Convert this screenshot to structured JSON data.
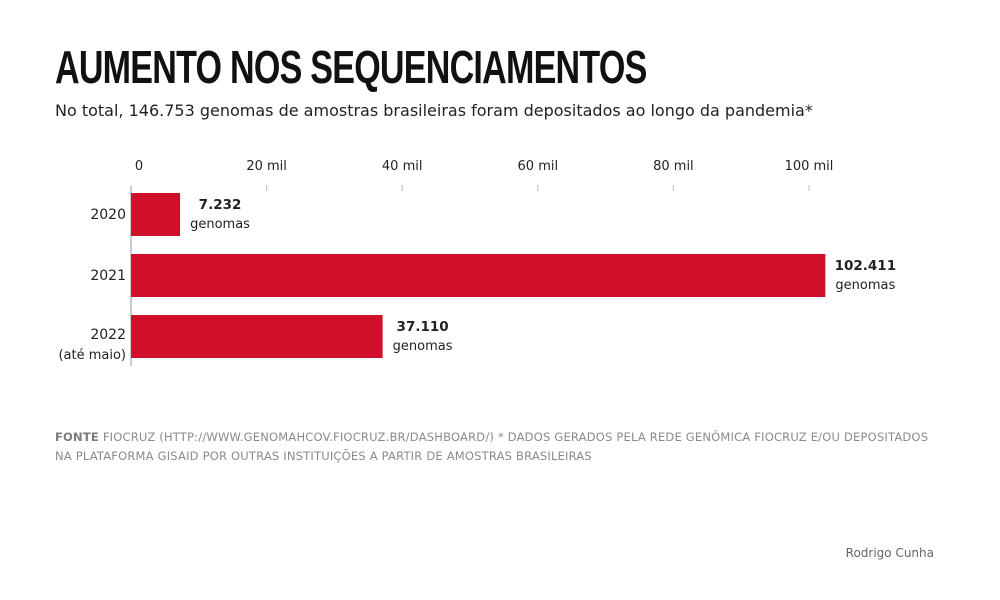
{
  "title": "AUMENTO NOS SEQUENCIAMENTOS",
  "subtitle": "No total, 146.753 genomas de amostras brasileiras foram depositados ao longo da pandemia*",
  "chart_data": {
    "type": "bar",
    "orientation": "horizontal",
    "categories": [
      "2020",
      "2021",
      "2022"
    ],
    "category_notes": [
      "",
      "",
      "(até maio)"
    ],
    "values": [
      7232,
      102411,
      37110
    ],
    "value_labels": [
      "7.232",
      "102.411",
      "37.110"
    ],
    "value_unit_label": "genomas",
    "xlim": [
      0,
      105000
    ],
    "xticks": [
      0,
      20000,
      40000,
      60000,
      80000,
      100000
    ],
    "xtick_labels": [
      "0",
      "20 mil",
      "40 mil",
      "60 mil",
      "80 mil",
      "100 mil"
    ],
    "axis_position": "top",
    "grid": false,
    "bar_color": "#d0102a"
  },
  "source": {
    "label": "FONTE",
    "text": "FIOCRUZ (HTTP://WWW.GENOMAHCOV.FIOCRUZ.BR/DASHBOARD/) * DADOS GERADOS PELA REDE GENÔMICA FIOCRUZ E/OU DEPOSITADOS NA PLATAFORMA GISAID POR OUTRAS INSTITUIÇÕES A PARTIR DE AMOSTRAS BRASILEIRAS"
  },
  "credit": "Rodrigo Cunha"
}
